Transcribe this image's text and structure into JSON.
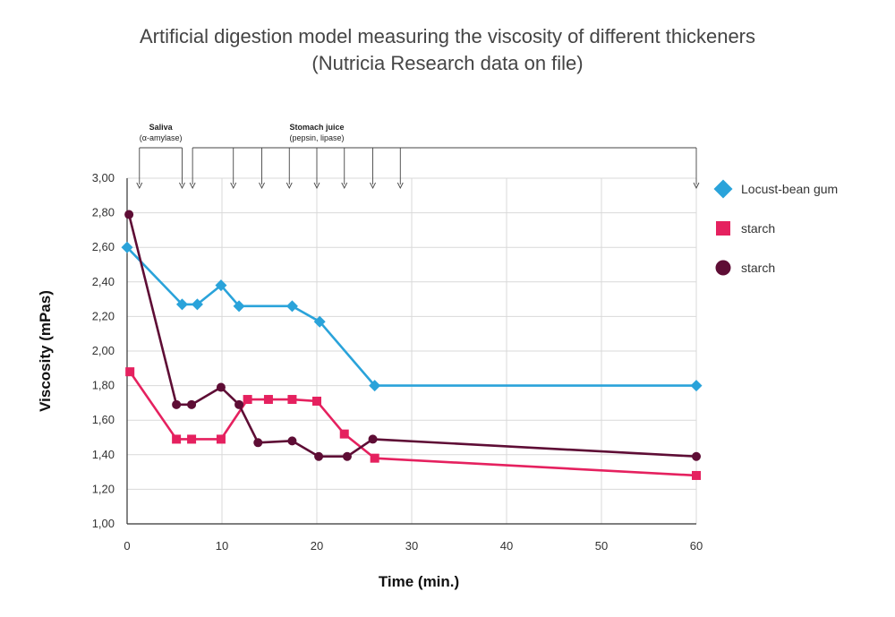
{
  "chart_data": {
    "type": "line",
    "title": "Artificial digestion model measuring the viscosity of different thickeners",
    "subtitle": "(Nutricia Research data on file)",
    "xlabel": "Time (min.)",
    "ylabel": "Viscosity (mPas)",
    "xlim": [
      0,
      60
    ],
    "ylim": [
      1.0,
      3.0
    ],
    "x_ticks": [
      "0",
      "10",
      "20",
      "30",
      "40",
      "50",
      "60"
    ],
    "x_tick_values": [
      0,
      10,
      20,
      30,
      40,
      50,
      60
    ],
    "y_ticks": [
      "1,00",
      "1,20",
      "1,40",
      "1,60",
      "1,80",
      "2,00",
      "2,20",
      "2,40",
      "2,60",
      "2,80",
      "3,00"
    ],
    "y_tick_values": [
      1.0,
      1.2,
      1.4,
      1.6,
      1.8,
      2.0,
      2.2,
      2.4,
      2.6,
      2.8,
      3.0
    ],
    "grid": true,
    "legend_position": "right",
    "phases": [
      {
        "label": "Saliva",
        "sublabel": "(α-amylase)",
        "arrow_x": [
          1.3,
          5.8
        ]
      },
      {
        "label": "Stomach juice",
        "sublabel": "(pepsin, lipase)",
        "arrow_x": [
          6.9,
          11.2,
          14.2,
          17.1,
          20.0,
          22.9,
          25.9,
          28.8,
          60
        ]
      }
    ],
    "series": [
      {
        "name": "Locust-bean gum",
        "marker": "diamond",
        "color": "#2aa3da",
        "x": [
          0,
          5.8,
          7.4,
          9.9,
          11.8,
          17.4,
          20.3,
          26.1,
          60
        ],
        "y": [
          2.6,
          2.27,
          2.27,
          2.38,
          2.26,
          2.26,
          2.17,
          1.8,
          1.8
        ]
      },
      {
        "name": "starch",
        "marker": "square",
        "color": "#e5215f",
        "x": [
          0.3,
          5.2,
          6.8,
          9.9,
          12.7,
          14.9,
          17.4,
          20.0,
          22.9,
          26.1,
          60
        ],
        "y": [
          1.88,
          1.49,
          1.49,
          1.49,
          1.72,
          1.72,
          1.72,
          1.71,
          1.52,
          1.38,
          1.28
        ]
      },
      {
        "name": "starch",
        "marker": "circle",
        "color": "#5e0d35",
        "x": [
          0.2,
          5.2,
          6.8,
          9.9,
          11.8,
          13.8,
          17.4,
          20.2,
          23.2,
          25.9,
          60
        ],
        "y": [
          2.79,
          1.69,
          1.69,
          1.79,
          1.69,
          1.47,
          1.48,
          1.39,
          1.39,
          1.49,
          1.39
        ]
      }
    ]
  }
}
